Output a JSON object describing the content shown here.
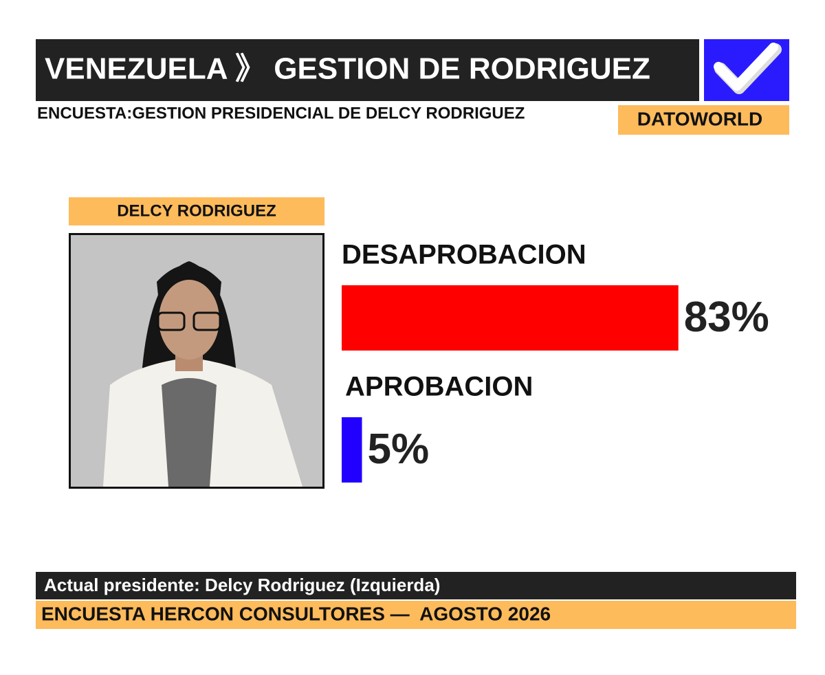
{
  "header": {
    "title": "VENEZUELA 》 GESTION DE RODRIGUEZ",
    "subtitle": "ENCUESTA:GESTION PRESIDENCIAL DE DELCY RODRIGUEZ",
    "brand": "DATOWORLD"
  },
  "candidate": {
    "name": "DELCY RODRIGUEZ"
  },
  "chart_data": {
    "type": "bar",
    "orientation": "horizontal",
    "categories": [
      "DESAPROBACION",
      "APROBACION"
    ],
    "values": [
      83,
      5
    ],
    "value_labels": [
      "83%",
      "5%"
    ],
    "colors": [
      "#ff0000",
      "#2200ff"
    ]
  },
  "footer": {
    "note": "Actual presidente: Delcy Rodriguez (Izquierda)",
    "source": "ENCUESTA HERCON CONSULTORES —  AGOSTO 2026"
  }
}
